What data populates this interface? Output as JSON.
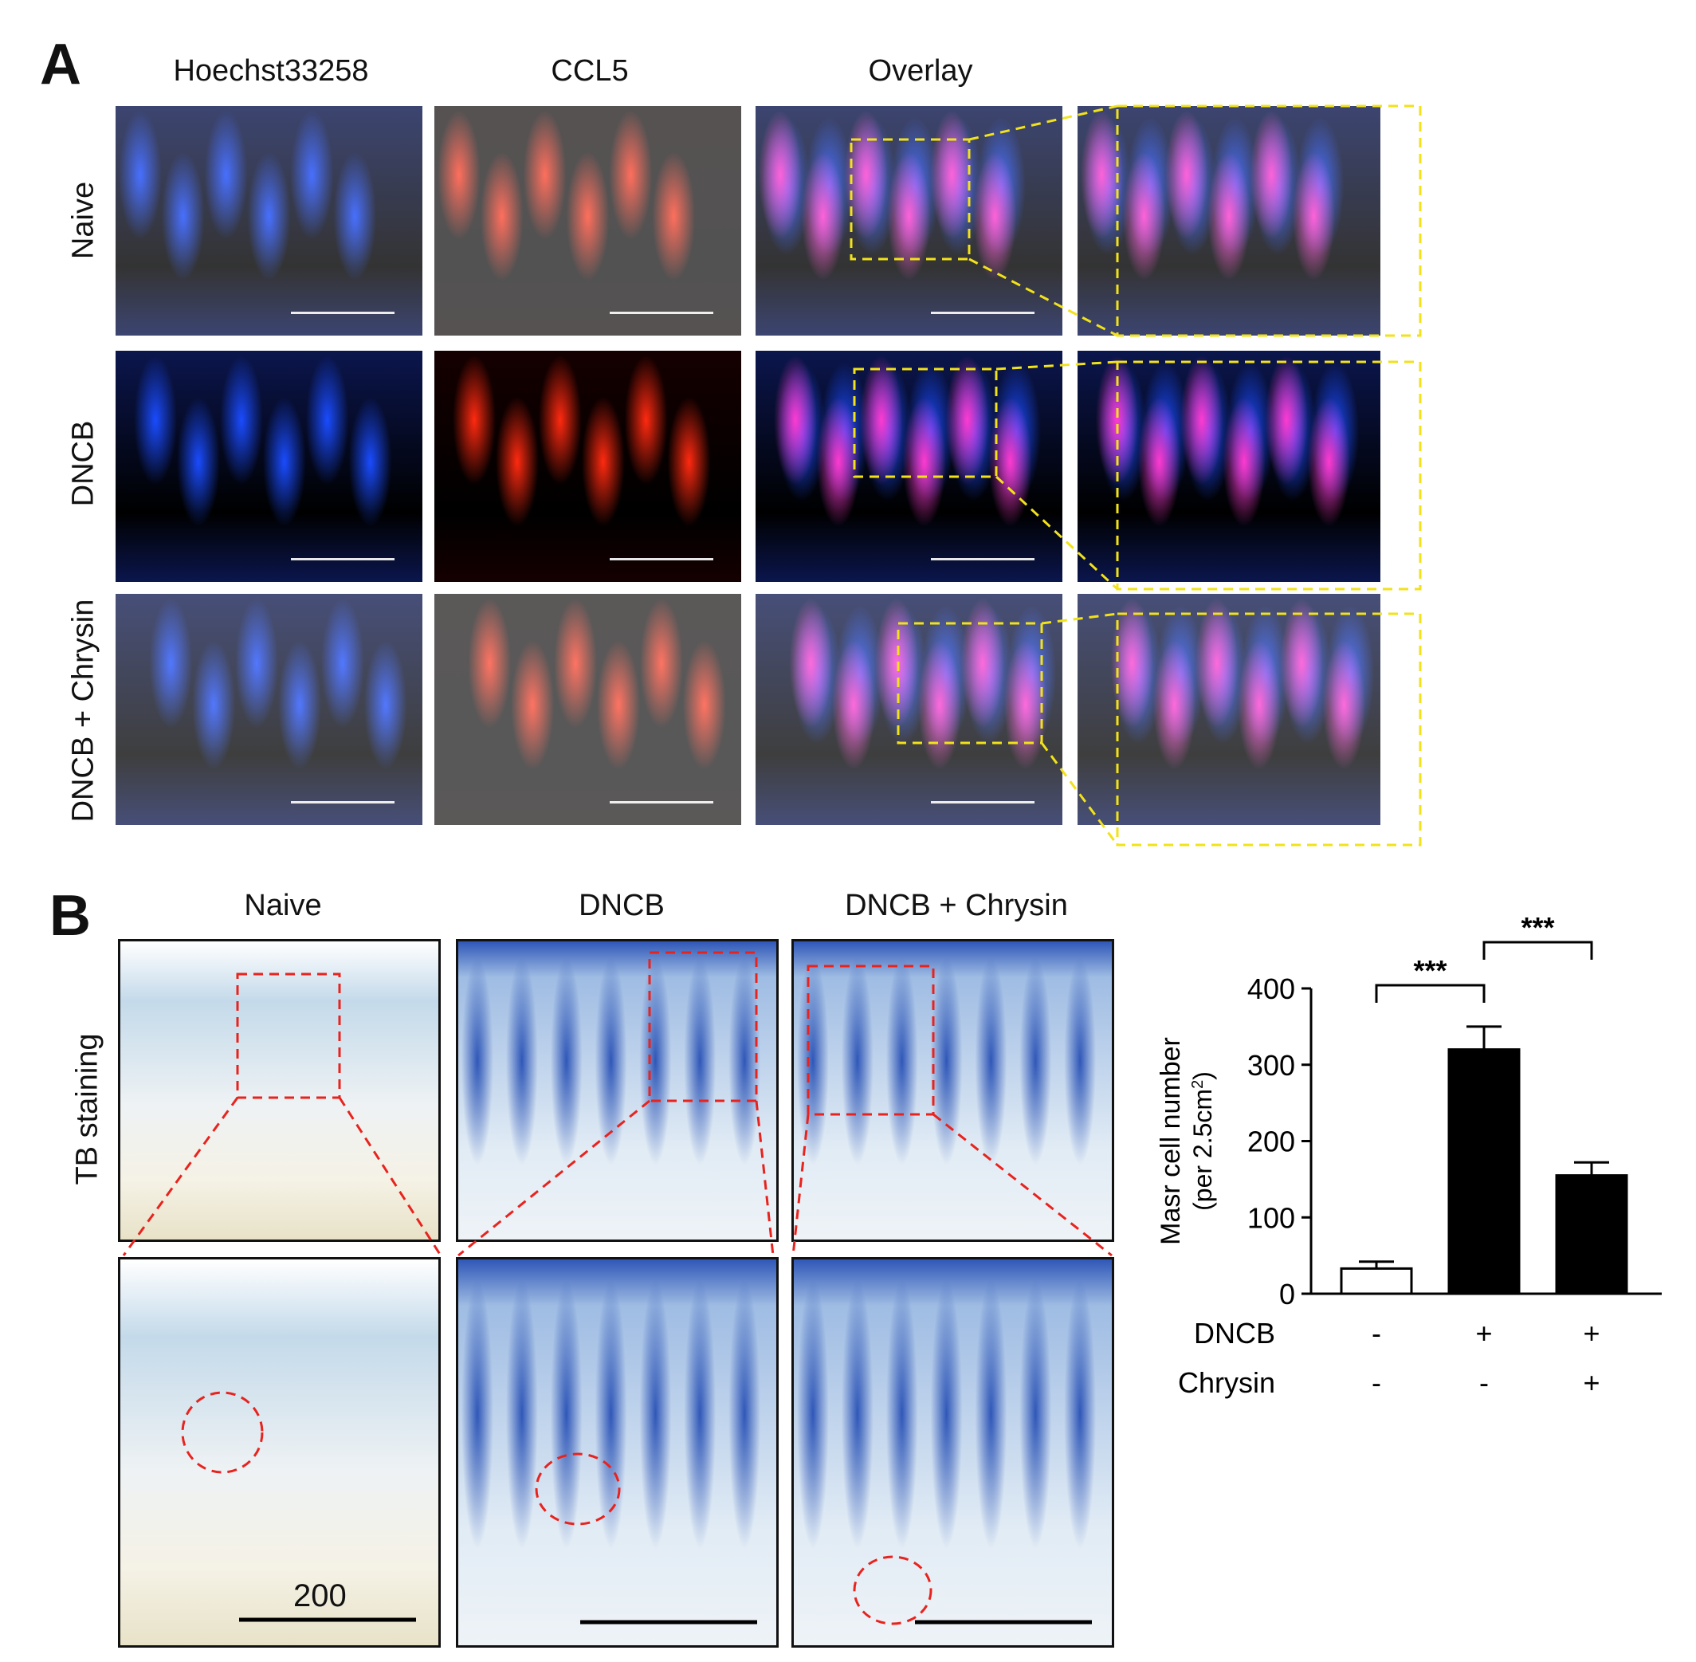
{
  "panelA": {
    "letter": "A",
    "columns": [
      "Hoechst33258",
      "CCL5",
      "Overlay"
    ],
    "rows": [
      "Naive",
      "DNCB",
      "DNCB + Chrysin"
    ]
  },
  "panelB": {
    "letter": "B",
    "columns": [
      "Naive",
      "DNCB",
      "DNCB + Chrysin"
    ],
    "row_label": "TB staining",
    "scale_label": "200"
  },
  "colors": {
    "hoechst": "#1a4cff",
    "ccl5": "#ff2a10",
    "overlay": "#ff3ad0",
    "box_yellow": "#f2e21a",
    "box_red": "#e8231e",
    "tb_blue": "#2f57b8"
  },
  "chart_data": {
    "type": "bar",
    "categories": [
      "Naive",
      "DNCB",
      "DNCB + Chrysin"
    ],
    "values": [
      33,
      320,
      155
    ],
    "errors": [
      9,
      30,
      17
    ],
    "bar_fill": [
      "#ffffff",
      "#000000",
      "#000000"
    ],
    "ylabel_line1": "Masr cell number",
    "ylabel_line2": "(per 2.5cm",
    "ylabel_sup": "2",
    "ylabel_close": ")",
    "ylim": [
      0,
      400
    ],
    "yticks": [
      0,
      100,
      200,
      300,
      400
    ],
    "treatment_rows": [
      {
        "label": "DNCB",
        "signs": [
          "-",
          "+",
          "+"
        ]
      },
      {
        "label": "Chrysin",
        "signs": [
          "-",
          "-",
          "+"
        ]
      }
    ],
    "significance": [
      {
        "from": 0,
        "to": 1,
        "label": "***"
      },
      {
        "from": 1,
        "to": 2,
        "label": "***"
      }
    ]
  }
}
